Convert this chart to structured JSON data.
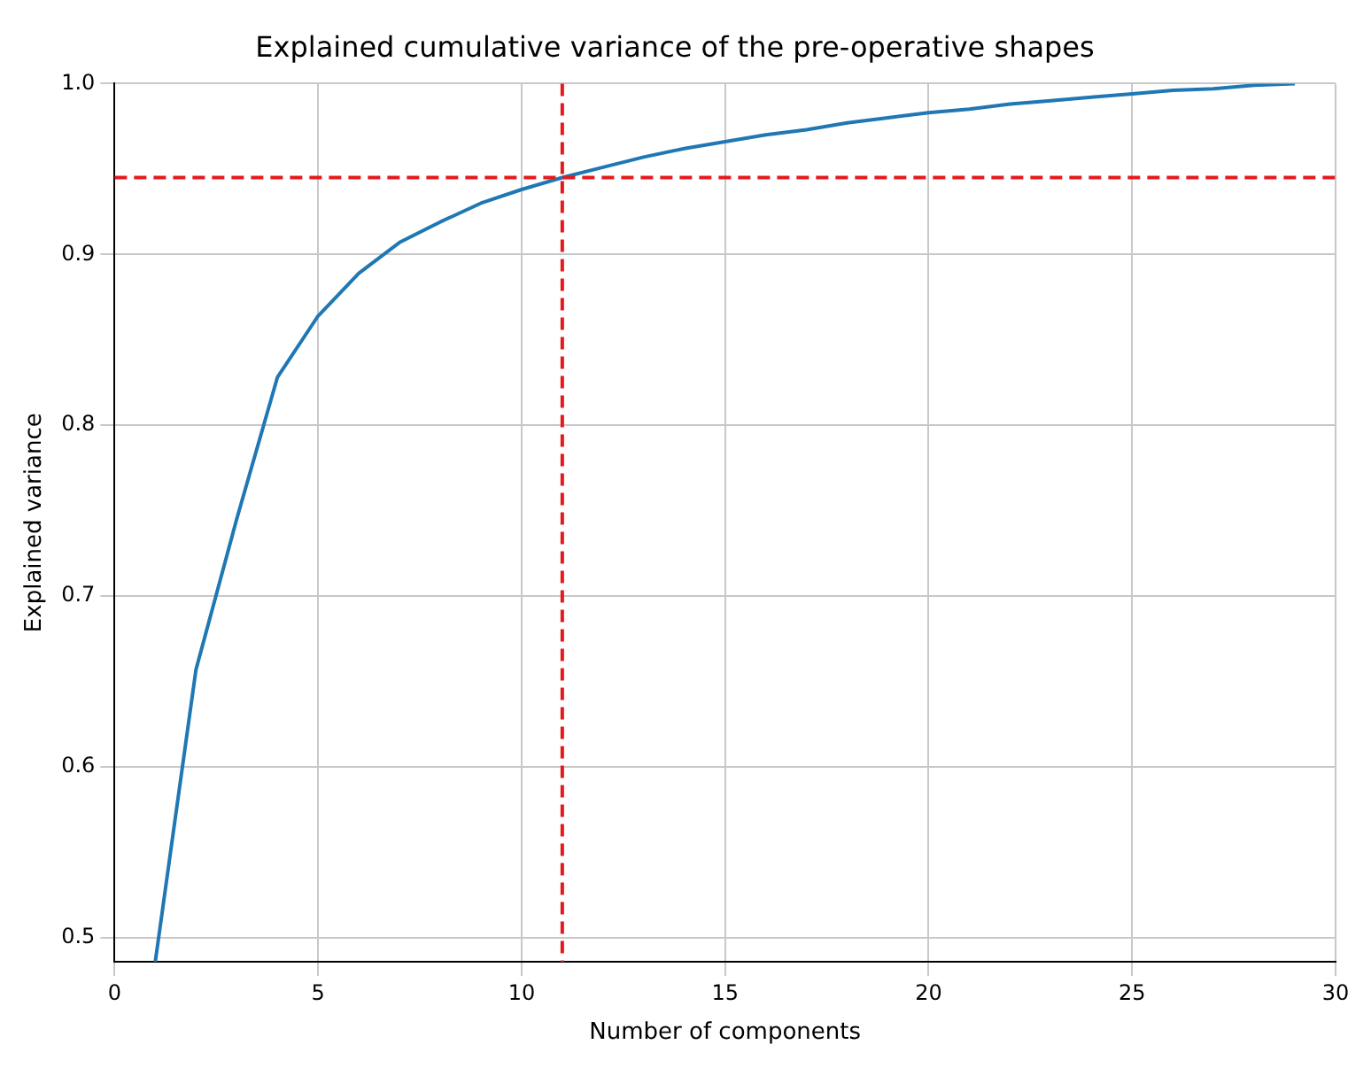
{
  "chart_data": {
    "type": "line",
    "title": "Explained cumulative variance of the pre-operative shapes",
    "xlabel": "Number of components",
    "ylabel": "Explained variance",
    "x": [
      1,
      2,
      3,
      4,
      5,
      6,
      7,
      8,
      9,
      10,
      11,
      12,
      13,
      14,
      15,
      16,
      17,
      18,
      19,
      20,
      21,
      22,
      23,
      24,
      25,
      26,
      27,
      28,
      29
    ],
    "series": [
      {
        "color": "#1f77b4",
        "values": [
          0.486,
          0.657,
          0.745,
          0.828,
          0.864,
          0.889,
          0.907,
          0.919,
          0.93,
          0.938,
          0.945,
          0.951,
          0.957,
          0.962,
          0.966,
          0.97,
          0.973,
          0.977,
          0.98,
          0.983,
          0.985,
          0.988,
          0.99,
          0.992,
          0.994,
          0.996,
          0.997,
          0.999,
          1.0
        ]
      }
    ],
    "xlim": [
      0,
      30
    ],
    "xticks": [
      0,
      5,
      10,
      15,
      20,
      25,
      30
    ],
    "ylim": [
      0.486,
      1.0
    ],
    "yticks": [
      0.5,
      0.6,
      0.7,
      0.8,
      0.9,
      {
        "value": 1,
        "label": "1.0"
      }
    ],
    "ref_lines": [
      {
        "axis": "y",
        "value": 0.945,
        "color": "#e41a1c",
        "line_style": "dashed"
      },
      {
        "axis": "x",
        "value": 11,
        "color": "#e41a1c",
        "line_style": "dashed"
      }
    ],
    "grid": true,
    "legend": false,
    "marker": "none"
  }
}
